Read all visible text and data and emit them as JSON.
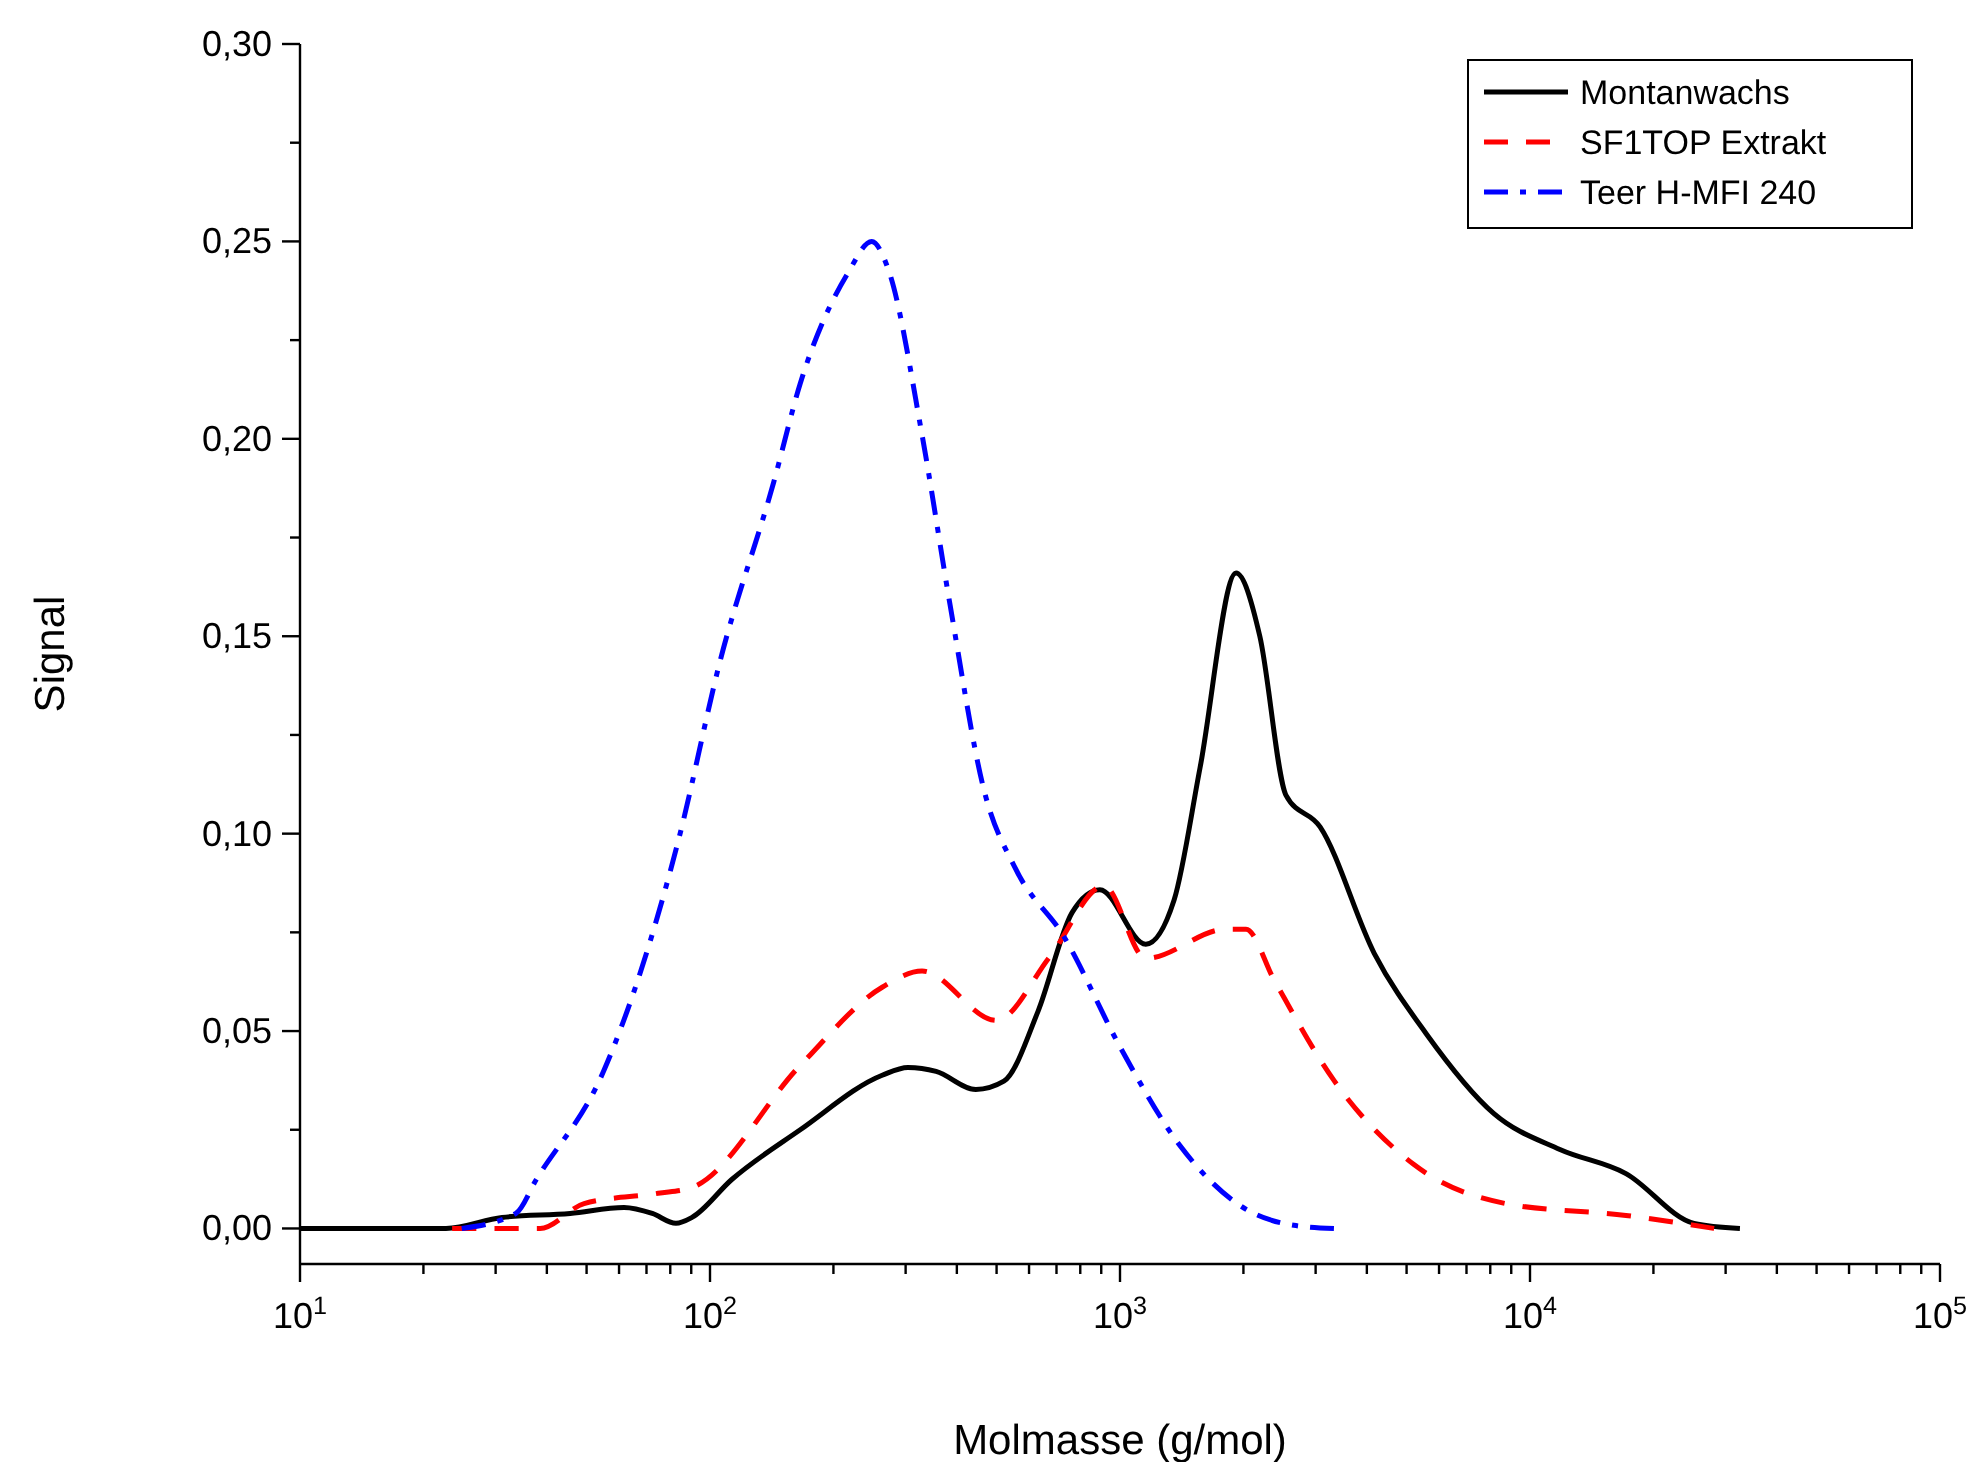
{
  "chart_data": {
    "type": "line",
    "xlabel": "Molmasse (g/mol)",
    "ylabel": "Signal",
    "log": "x",
    "legend": "top right",
    "grid": false,
    "marker": "none",
    "xlim": [
      10,
      100000
    ],
    "xticks": [
      {
        "value": 10,
        "label": "10$^{1}$"
      },
      {
        "value": 20,
        "label": null
      },
      {
        "value": 30,
        "label": null
      },
      {
        "value": 40,
        "label": null
      },
      {
        "value": 50,
        "label": null
      },
      {
        "value": 60,
        "label": null
      },
      {
        "value": 70,
        "label": null
      },
      {
        "value": 80,
        "label": null
      },
      {
        "value": 90,
        "label": null
      },
      {
        "value": 100,
        "label": "10$^{2}$"
      },
      {
        "value": 200,
        "label": null
      },
      {
        "value": 300,
        "label": null
      },
      {
        "value": 400,
        "label": null
      },
      {
        "value": 500,
        "label": null
      },
      {
        "value": 600,
        "label": null
      },
      {
        "value": 700,
        "label": null
      },
      {
        "value": 800,
        "label": null
      },
      {
        "value": 900,
        "label": null
      },
      {
        "value": 1000,
        "label": "10$^{3}$"
      },
      {
        "value": 2000,
        "label": null
      },
      {
        "value": 3000,
        "label": null
      },
      {
        "value": 4000,
        "label": null
      },
      {
        "value": 5000,
        "label": null
      },
      {
        "value": 6000,
        "label": null
      },
      {
        "value": 7000,
        "label": null
      },
      {
        "value": 8000,
        "label": null
      },
      {
        "value": 9000,
        "label": null
      },
      {
        "value": 10000,
        "label": "10$^{4}$"
      },
      {
        "value": 20000,
        "label": null
      },
      {
        "value": 30000,
        "label": null
      },
      {
        "value": 40000,
        "label": null
      },
      {
        "value": 50000,
        "label": null
      },
      {
        "value": 60000,
        "label": null
      },
      {
        "value": 70000,
        "label": null
      },
      {
        "value": 80000,
        "label": null
      },
      {
        "value": 90000,
        "label": null
      },
      {
        "value": 100000,
        "label": "10$^{5}$"
      }
    ],
    "ylim": [
      -0.009,
      0.3
    ],
    "yticks": [
      {
        "value": 0,
        "label": "0,00"
      },
      {
        "value": 0.025,
        "label": null
      },
      {
        "value": 0.05,
        "label": "0,05"
      },
      {
        "value": 0.075,
        "label": null
      },
      {
        "value": 0.1,
        "label": "0,10"
      },
      {
        "value": 0.125,
        "label": null
      },
      {
        "value": 0.15,
        "label": "0,15"
      },
      {
        "value": 0.175,
        "label": null
      },
      {
        "value": 0.2,
        "label": "0,20"
      },
      {
        "value": 0.225,
        "label": null
      },
      {
        "value": 0.25,
        "label": "0,25"
      },
      {
        "value": 0.275,
        "label": null
      },
      {
        "value": 0.3,
        "label": "0,30"
      }
    ],
    "series": [
      {
        "name": "Montanwachs",
        "color": "#000000",
        "line_style": "solid",
        "x": [
          10,
          22.7,
          31.1,
          45.6,
          61.7,
          72.3,
          82.6,
          90.4,
          113,
          166,
          263,
          304,
          356,
          445,
          521,
          631,
          764,
          893,
          1156,
          1355,
          1567,
          1919,
          2193,
          2541,
          3076,
          4169,
          5577,
          8166,
          11830,
          17140,
          25120,
          32510
        ],
        "values": [
          0,
          0,
          0.0028,
          0.0038,
          0.0053,
          0.0038,
          0.0013,
          0.0028,
          0.0124,
          0.025,
          0.0388,
          0.0408,
          0.0398,
          0.0352,
          0.0373,
          0.055,
          0.08,
          0.0858,
          0.072,
          0.0832,
          0.1166,
          0.166,
          0.15,
          0.1097,
          0.1017,
          0.0697,
          0.0494,
          0.0291,
          0.02,
          0.0139,
          0.0013,
          0
        ]
      },
      {
        "name": "SF1TOP Extrakt",
        "color": "#ff0000",
        "line_style": "dashed",
        "x": [
          23.5,
          38.5,
          49.3,
          74.7,
          90.4,
          166,
          263,
          329,
          499,
          675,
          914,
          1156,
          1815,
          2029,
          2377,
          3325,
          5211,
          8730,
          17140,
          28120
        ],
        "values": [
          0,
          0,
          0.0063,
          0.0089,
          0.0104,
          0.0413,
          0.0611,
          0.0652,
          0.0527,
          0.0689,
          0.0868,
          0.0684,
          0.0758,
          0.0758,
          0.0629,
          0.0375,
          0.0162,
          0.0063,
          0.0033,
          0
        ]
      },
      {
        "name": "Teer H-MFI 240",
        "color": "#0000ff",
        "line_style": "dashdot",
        "x": [
          24.8,
          33.6,
          37.7,
          55.1,
          83.6,
          106,
          143,
          166,
          217,
          248,
          272,
          329,
          385,
          466,
          557,
          729,
          1000,
          1400,
          1963,
          2655,
          3325
        ],
        "values": [
          0,
          0.0038,
          0.0124,
          0.04,
          0.098,
          0.144,
          0.189,
          0.214,
          0.242,
          0.25,
          0.243,
          0.201,
          0.158,
          0.111,
          0.091,
          0.074,
          0.046,
          0.021,
          0.0058,
          0.0008,
          0
        ]
      }
    ]
  }
}
